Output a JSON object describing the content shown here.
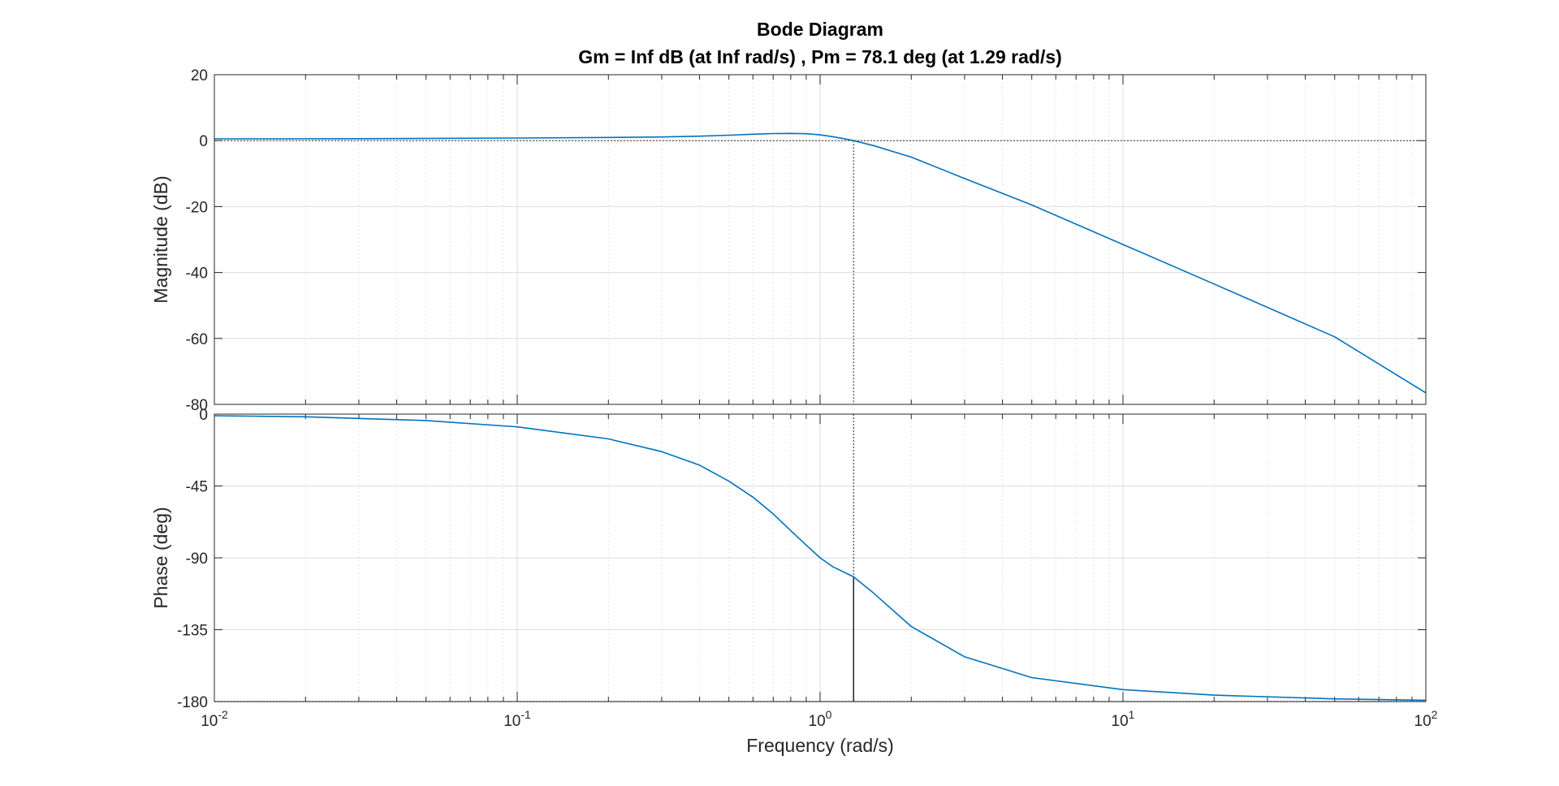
{
  "chart_data": {
    "type": "line",
    "title": "Bode Diagram",
    "subtitle": "Gm = Inf dB (at Inf rad/s) ,  Pm = 78.1 deg (at 1.29 rad/s)",
    "xlabel": "Frequency  (rad/s)",
    "xscale": "log",
    "xlim": [
      0.01,
      100
    ],
    "x_ticks": [
      {
        "base": "10",
        "exp": "-2"
      },
      {
        "base": "10",
        "exp": "-1"
      },
      {
        "base": "10",
        "exp": "0"
      },
      {
        "base": "10",
        "exp": "1"
      },
      {
        "base": "10",
        "exp": "2"
      }
    ],
    "grid": true,
    "line_color": "#0072BD",
    "crossover_frequency": 1.29,
    "panels": [
      {
        "name": "magnitude",
        "ylabel": "Magnitude (dB)",
        "ylim": [
          -80,
          20
        ],
        "y_ticks": [
          "20",
          "0",
          "-20",
          "-40",
          "-60",
          "-80"
        ],
        "reference_line": 0,
        "points": [
          [
            0.01,
            0.55
          ],
          [
            0.03,
            0.6
          ],
          [
            0.1,
            0.8
          ],
          [
            0.2,
            0.95
          ],
          [
            0.3,
            1.1
          ],
          [
            0.4,
            1.35
          ],
          [
            0.5,
            1.65
          ],
          [
            0.6,
            1.95
          ],
          [
            0.7,
            2.15
          ],
          [
            0.8,
            2.2
          ],
          [
            0.9,
            2.1
          ],
          [
            1.0,
            1.75
          ],
          [
            1.1,
            1.2
          ],
          [
            1.2,
            0.6
          ],
          [
            1.29,
            0.0
          ],
          [
            1.5,
            -1.5
          ],
          [
            2.0,
            -5.0
          ],
          [
            3.0,
            -11.5
          ],
          [
            5.0,
            -19.5
          ],
          [
            10.0,
            -31.5
          ],
          [
            20.0,
            -43.5
          ],
          [
            50.0,
            -59.5
          ],
          [
            100.0,
            -76.5
          ]
        ]
      },
      {
        "name": "phase",
        "ylabel": "Phase (deg)",
        "ylim": [
          -180,
          0
        ],
        "y_ticks": [
          "0",
          "-45",
          "-90",
          "-135",
          "-180"
        ],
        "reference_line": -180,
        "phase_at_crossover": -101.9,
        "points": [
          [
            0.01,
            -1.0
          ],
          [
            0.02,
            -1.7
          ],
          [
            0.05,
            -4.0
          ],
          [
            0.1,
            -8.0
          ],
          [
            0.2,
            -15.5
          ],
          [
            0.3,
            -23.5
          ],
          [
            0.4,
            -32.0
          ],
          [
            0.5,
            -42.0
          ],
          [
            0.6,
            -52.0
          ],
          [
            0.7,
            -62.5
          ],
          [
            0.8,
            -73.0
          ],
          [
            0.9,
            -82.0
          ],
          [
            1.0,
            -90.0
          ],
          [
            1.1,
            -95.5
          ],
          [
            1.29,
            -101.9
          ],
          [
            1.5,
            -112.0
          ],
          [
            2.0,
            -133.0
          ],
          [
            3.0,
            -152.0
          ],
          [
            5.0,
            -165.0
          ],
          [
            10.0,
            -172.5
          ],
          [
            20.0,
            -176.0
          ],
          [
            50.0,
            -178.3
          ],
          [
            100.0,
            -179.2
          ]
        ]
      }
    ]
  }
}
